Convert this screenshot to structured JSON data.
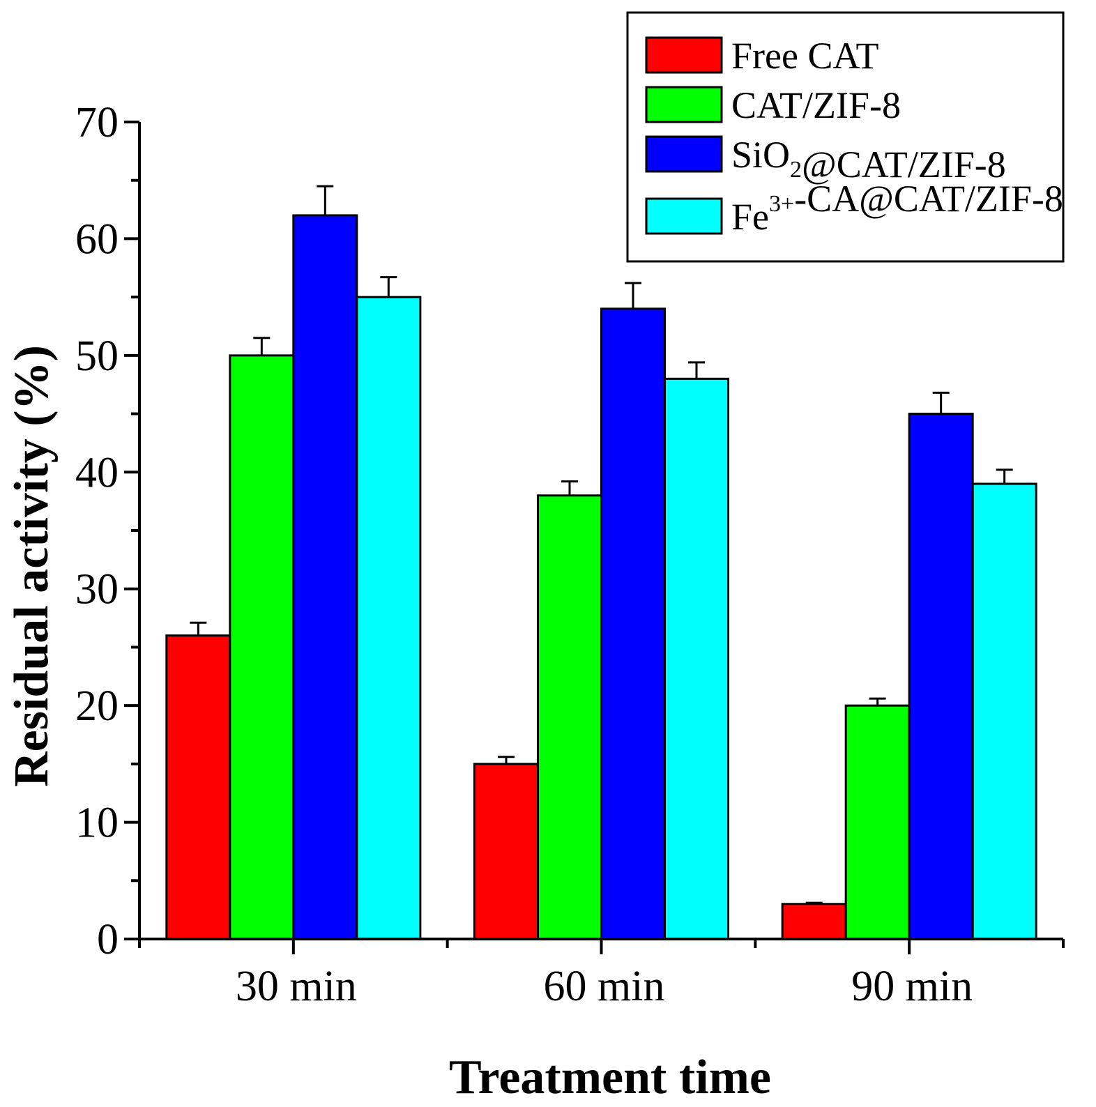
{
  "chart_data": {
    "type": "bar",
    "title": "",
    "xlabel": "Treatment time",
    "ylabel": "Residual activity (%)",
    "categories": [
      "30 min",
      "60 min",
      "90 min"
    ],
    "ylim": [
      0,
      70
    ],
    "yticks": [
      0,
      10,
      20,
      30,
      40,
      50,
      60,
      70
    ],
    "ytick_labels": [
      "0",
      "10",
      "20",
      "30",
      "40",
      "50",
      "60",
      "70"
    ],
    "grid": false,
    "legend_position": "top-right",
    "series": [
      {
        "name": "Free CAT",
        "label_parts": [
          {
            "text": "Free CAT",
            "sup": false,
            "sub": false
          }
        ],
        "color": "#ff0000",
        "values": [
          26,
          15,
          3
        ],
        "errors": [
          1.1,
          0.6,
          0.1
        ]
      },
      {
        "name": "CAT/ZIF-8",
        "label_parts": [
          {
            "text": "CAT/ZIF-8",
            "sup": false,
            "sub": false
          }
        ],
        "color": "#00ff00",
        "values": [
          50,
          38,
          20
        ],
        "errors": [
          1.5,
          1.2,
          0.6
        ]
      },
      {
        "name": "SiO2@CAT/ZIF-8",
        "label_parts": [
          {
            "text": "SiO",
            "sup": false,
            "sub": false
          },
          {
            "text": "2",
            "sup": false,
            "sub": true
          },
          {
            "text": "@CAT/ZIF-8",
            "sup": false,
            "sub": false
          }
        ],
        "color": "#0000ff",
        "values": [
          62,
          54,
          45
        ],
        "errors": [
          2.5,
          2.2,
          1.8
        ]
      },
      {
        "name": "Fe3+-CA@CAT/ZIF-8",
        "label_parts": [
          {
            "text": "Fe",
            "sup": false,
            "sub": false
          },
          {
            "text": "3+",
            "sup": true,
            "sub": false
          },
          {
            "text": "-CA@CAT/ZIF-8",
            "sup": false,
            "sub": false
          }
        ],
        "color": "#00ffff",
        "values": [
          55,
          48,
          39
        ],
        "errors": [
          1.7,
          1.4,
          1.2
        ]
      }
    ]
  }
}
